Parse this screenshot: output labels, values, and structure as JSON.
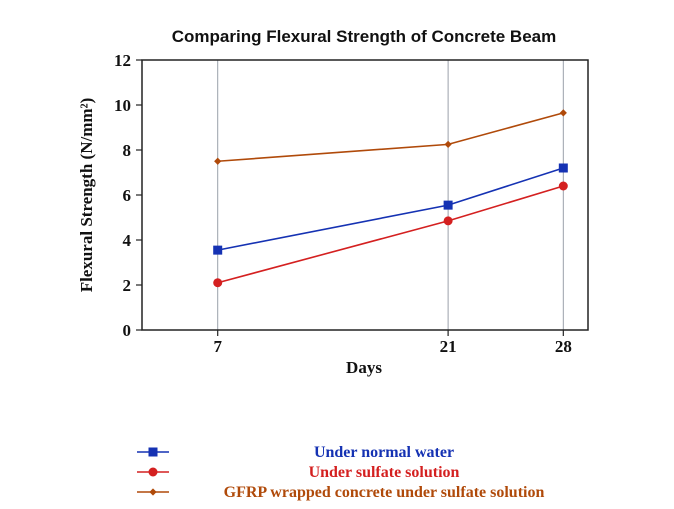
{
  "chart_data": {
    "type": "line",
    "title": "Comparing Flexural Strength of Concrete Beam",
    "xlabel": "Days",
    "ylabel": "Flexural Strength (N/mm²)",
    "x": [
      7,
      21,
      28
    ],
    "x_tick_labels": [
      "7",
      "21",
      "28"
    ],
    "xlim": [
      2.4,
      29.5
    ],
    "ylim": [
      0,
      12
    ],
    "y_ticks": [
      0,
      2,
      4,
      6,
      8,
      10,
      12
    ],
    "y_tick_labels": [
      "0",
      "2",
      "4",
      "6",
      "8",
      "10",
      "12"
    ],
    "grid": "vertical",
    "legend_position": "bottom",
    "series": [
      {
        "name": "Under normal water",
        "values": [
          3.55,
          5.55,
          7.2
        ],
        "color": "#1532b3",
        "marker": "square"
      },
      {
        "name": "Under sulfate solution",
        "values": [
          2.1,
          4.85,
          6.4
        ],
        "color": "#d42020",
        "marker": "circle"
      },
      {
        "name": "GFRP wrapped concrete under sulfate solution",
        "values": [
          7.5,
          8.25,
          9.65
        ],
        "color": "#b04a0a",
        "marker": "diamond"
      }
    ]
  }
}
